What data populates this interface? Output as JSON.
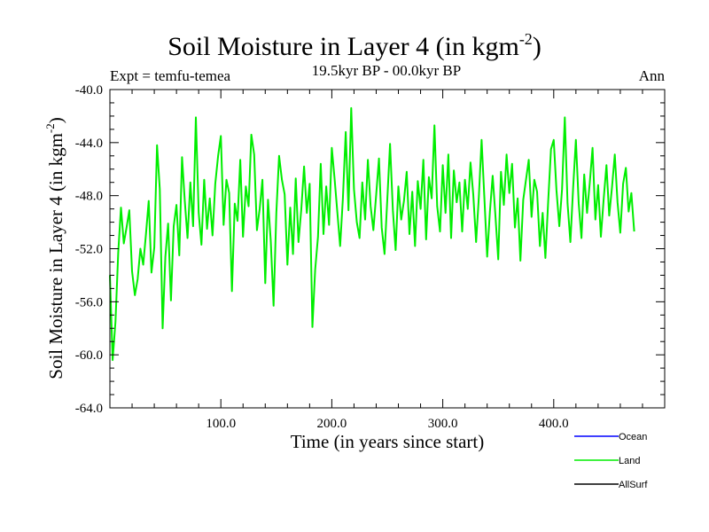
{
  "chart_data": {
    "type": "line",
    "title": "Soil Moisture in Layer 4 (in kgm",
    "title_sup": "-2",
    "title_end": ")",
    "subtitle": "19.5kyr BP - 00.0kyr BP",
    "expt_label": "Expt = temfu-temea",
    "season_label": "Ann",
    "xlabel": "Time (in years since start)",
    "ylabel": "Soil Moisture in Layer 4 (in kgm",
    "ylabel_sup": "-2",
    "ylabel_end": ")",
    "xlim": [
      0,
      500
    ],
    "ylim": [
      -64,
      -40
    ],
    "x_ticks": [
      100,
      200,
      300,
      400
    ],
    "x_tick_labels": [
      "100.0",
      "200.0",
      "300.0",
      "400.0"
    ],
    "y_ticks": [
      -40,
      -44,
      -48,
      -52,
      -56,
      -60,
      -64
    ],
    "y_tick_labels": [
      "-40.0",
      "-44.0",
      "-48.0",
      "-52.0",
      "-56.0",
      "-60.0",
      "-64.0"
    ],
    "legend": [
      {
        "name": "Ocean",
        "color": "#0000ff"
      },
      {
        "name": "Land",
        "color": "#00ee00"
      },
      {
        "name": "AllSurf",
        "color": "#000000"
      }
    ],
    "series": [
      {
        "name": "Land",
        "color": "#00ee00",
        "x_start": 0,
        "x_step": 2.5,
        "values": [
          -54.0,
          -60.4,
          -57.5,
          -52.3,
          -48.9,
          -51.6,
          -50.4,
          -49.1,
          -53.7,
          -55.5,
          -54.3,
          -52.0,
          -53.2,
          -50.9,
          -48.4,
          -53.8,
          -51.9,
          -44.2,
          -47.5,
          -58.0,
          -52.6,
          -50.1,
          -55.9,
          -50.3,
          -48.7,
          -52.5,
          -45.1,
          -48.4,
          -51.2,
          -47.0,
          -50.3,
          -42.1,
          -49.3,
          -51.7,
          -46.8,
          -50.5,
          -48.2,
          -51.0,
          -47.1,
          -45.0,
          -43.5,
          -50.2,
          -46.8,
          -47.8,
          -55.2,
          -48.6,
          -49.9,
          -45.3,
          -51.1,
          -47.3,
          -48.8,
          -43.4,
          -44.9,
          -50.6,
          -49.0,
          -46.8,
          -54.6,
          -48.3,
          -51.4,
          -56.3,
          -49.3,
          -45.0,
          -46.8,
          -47.9,
          -53.2,
          -48.9,
          -52.4,
          -46.7,
          -51.5,
          -49.0,
          -45.8,
          -49.3,
          -47.1,
          -57.9,
          -53.6,
          -51.1,
          -45.6,
          -50.9,
          -47.3,
          -50.2,
          -44.4,
          -46.7,
          -49.3,
          -51.8,
          -48.2,
          -43.2,
          -49.1,
          -41.4,
          -47.5,
          -50.0,
          -51.2,
          -47.0,
          -49.8,
          -45.3,
          -48.8,
          -50.6,
          -47.9,
          -45.2,
          -50.4,
          -52.4,
          -48.3,
          -44.1,
          -49.1,
          -52.1,
          -47.3,
          -49.8,
          -48.4,
          -46.2,
          -50.9,
          -47.7,
          -51.8,
          -46.9,
          -49.0,
          -45.3,
          -51.3,
          -46.6,
          -48.2,
          -42.7,
          -48.8,
          -50.7,
          -45.7,
          -49.3,
          -44.9,
          -51.2,
          -46.1,
          -48.5,
          -47.0,
          -50.7,
          -46.8,
          -49.0,
          -45.5,
          -47.9,
          -51.5,
          -48.1,
          -43.8,
          -48.1,
          -52.6,
          -49.2,
          -46.5,
          -49.6,
          -52.8,
          -46.2,
          -48.7,
          -44.9,
          -47.8,
          -45.6,
          -50.4,
          -48.2,
          -52.9,
          -48.3,
          -46.8,
          -45.3,
          -49.6,
          -46.8,
          -47.7,
          -51.8,
          -49.3,
          -52.7,
          -48.5,
          -44.5,
          -43.8,
          -47.6,
          -50.3,
          -47.5,
          -42.1,
          -48.6,
          -51.5,
          -47.4,
          -43.8,
          -48.6,
          -51.2,
          -46.4,
          -49.3,
          -47.0,
          -44.4,
          -49.8,
          -47.2,
          -51.1,
          -48.3,
          -45.7,
          -49.5,
          -47.4,
          -44.9,
          -48.5,
          -50.8,
          -47.1,
          -45.9,
          -49.2,
          -47.8,
          -50.7
        ]
      }
    ]
  }
}
